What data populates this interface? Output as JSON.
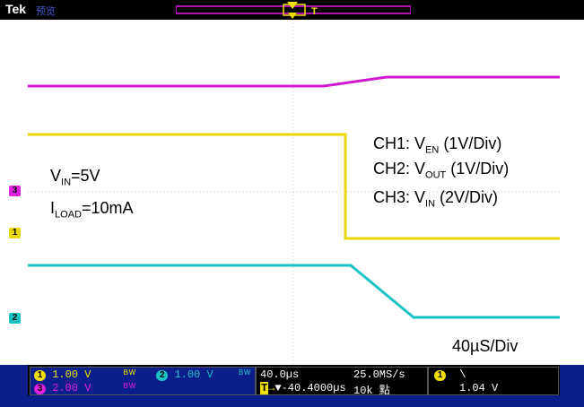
{
  "header": {
    "brand": "Tek",
    "mode": "预览",
    "trigger_marker": "T"
  },
  "annotations": {
    "vin": {
      "sym": "V",
      "sub": "IN",
      "val": "=5V"
    },
    "iload": {
      "sym": "I",
      "sub": "LOAD",
      "val": "=10mA"
    },
    "ch1": {
      "pre": "CH1: V",
      "sub": "EN",
      "post": " (1V/Div)"
    },
    "ch2": {
      "pre": "CH2: V",
      "sub": "OUT",
      "post": " (1V/Div)"
    },
    "ch3": {
      "pre": "CH3: V",
      "sub": "IN",
      "post": " (2V/Div)"
    },
    "timebase": "40µS/Div"
  },
  "markers": [
    {
      "ch": "3",
      "color": "#e020e0"
    },
    {
      "ch": "1",
      "color": "#e8d800"
    },
    {
      "ch": "2",
      "color": "#19c3c3"
    }
  ],
  "status": {
    "ch1": {
      "num": "1",
      "scale": "1.00 V",
      "color": "#f0e000"
    },
    "ch2": {
      "num": "2",
      "scale": "1.00 V",
      "color": "#19c3c3"
    },
    "ch3": {
      "num": "3",
      "scale": "2.00 V",
      "color": "#e020e0"
    },
    "horiz": {
      "time": "40.0µs",
      "offset": "▼-40.4000µs",
      "rate": "25.0MS/s",
      "points": "10k 點"
    },
    "trigger": {
      "num": "1",
      "slope": "\\",
      "level": "1.04 V"
    }
  },
  "colors": {
    "ch1": "#e8d800",
    "ch2": "#19c3c3",
    "ch3": "#d018d0",
    "frame": "#0b1e8a"
  }
}
